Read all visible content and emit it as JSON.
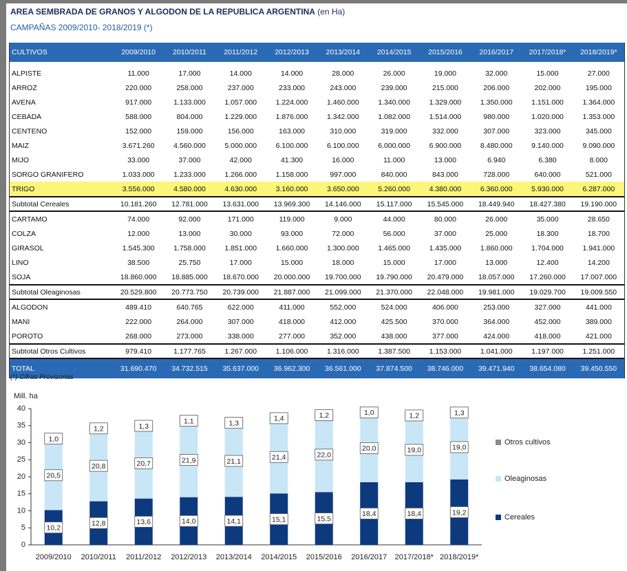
{
  "header": {
    "title": "AREA SEMBRADA DE GRANOS Y ALGODON DE LA REPUBLICA ARGENTINA",
    "title_unit": "(en Ha)",
    "subtitle": "CAMPAÑAS 2009/2010- 2018/2019 (*)"
  },
  "table": {
    "columns": [
      "CULTIVOS",
      "2009/2010",
      "2010/2011",
      "2011/2012",
      "2012/2013",
      "2013/2014",
      "2014/2015",
      "2015/2016",
      "2016/2017",
      "2017/2018*",
      "2018/2019*"
    ],
    "groups": [
      {
        "rows": [
          [
            "ALPISTE",
            "11.000",
            "17.000",
            "14.000",
            "14.000",
            "28.000",
            "26.000",
            "19.000",
            "32.000",
            "15.000",
            "27.000"
          ],
          [
            "ARROZ",
            "220.000",
            "258.000",
            "237.000",
            "233.000",
            "243.000",
            "239.000",
            "215.000",
            "206.000",
            "202.000",
            "195.000"
          ],
          [
            "AVENA",
            "917.000",
            "1.133.000",
            "1.057.000",
            "1.224.000",
            "1.460.000",
            "1.340.000",
            "1.329.000",
            "1.350.000",
            "1.151.000",
            "1.364.000"
          ],
          [
            "CEBADA",
            "588.000",
            "804.000",
            "1.229.000",
            "1.876.000",
            "1.342.000",
            "1.082.000",
            "1.514.000",
            "980.000",
            "1.020.000",
            "1.353.000"
          ],
          [
            "CENTENO",
            "152.000",
            "159.000",
            "156.000",
            "163.000",
            "310.000",
            "319.000",
            "332.000",
            "307.000",
            "323.000",
            "345.000"
          ],
          [
            "MAIZ",
            "3.671.260",
            "4.560.000",
            "5.000.000",
            "6.100.000",
            "6.100.000",
            "6.000.000",
            "6.900.000",
            "8.480.000",
            "9.140.000",
            "9.090.000"
          ],
          [
            "MIJO",
            "33.000",
            "37.000",
            "42.000",
            "41.300",
            "16.000",
            "11.000",
            "13.000",
            "6.940",
            "6.380",
            "8.000"
          ],
          [
            "SORGO GRANIFERO",
            "1.033.000",
            "1.233.000",
            "1.266.000",
            "1.158.000",
            "997.000",
            "840.000",
            "843.000",
            "728.000",
            "640.000",
            "521.000"
          ],
          [
            "TRIGO",
            "3.556.000",
            "4.580.000",
            "4.630.000",
            "3.160.000",
            "3.650.000",
            "5.260.000",
            "4.380.000",
            "6.360.000",
            "5.930.000",
            "6.287.000"
          ]
        ],
        "subtotal": [
          "Subtotal Cereales",
          "10.181.260",
          "12.781.000",
          "13.631.000",
          "13.969.300",
          "14.146.000",
          "15.117.000",
          "15.545.000",
          "18.449.940",
          "18.427.380",
          "19.190.000"
        ]
      },
      {
        "rows": [
          [
            "CARTAMO",
            "74.000",
            "92.000",
            "171.000",
            "119.000",
            "9.000",
            "44.000",
            "80.000",
            "26.000",
            "35.000",
            "28.650"
          ],
          [
            "COLZA",
            "12.000",
            "13.000",
            "30.000",
            "93.000",
            "72.000",
            "56.000",
            "37.000",
            "25.000",
            "18.300",
            "18.700"
          ],
          [
            "GIRASOL",
            "1.545.300",
            "1.758.000",
            "1.851.000",
            "1.660.000",
            "1.300.000",
            "1.465.000",
            "1.435.000",
            "1.860.000",
            "1.704.000",
            "1.941.000"
          ],
          [
            "LINO",
            "38.500",
            "25.750",
            "17.000",
            "15.000",
            "18.000",
            "15.000",
            "17.000",
            "13.000",
            "12.400",
            "14.200"
          ],
          [
            "SOJA",
            "18.860.000",
            "18.885.000",
            "18.670.000",
            "20.000.000",
            "19.700.000",
            "19.790.000",
            "20.479.000",
            "18.057.000",
            "17.260.000",
            "17.007.000"
          ]
        ],
        "subtotal": [
          "Subtotal Oleaginosas",
          "20.529.800",
          "20.773.750",
          "20.739.000",
          "21.887.000",
          "21.099.000",
          "21.370.000",
          "22.048.000",
          "19.981.000",
          "19.029.700",
          "19.009.550"
        ]
      },
      {
        "rows": [
          [
            "ALGODON",
            "489.410",
            "640.765",
            "622.000",
            "411.000",
            "552.000",
            "524.000",
            "406.000",
            "253.000",
            "327.000",
            "441.000"
          ],
          [
            "MANI",
            "222.000",
            "264.000",
            "307.000",
            "418.000",
            "412.000",
            "425.500",
            "370.000",
            "364.000",
            "452.000",
            "389.000"
          ],
          [
            "POROTO",
            "268.000",
            "273.000",
            "338.000",
            "277.000",
            "352.000",
            "438.000",
            "377.000",
            "424.000",
            "418.000",
            "421.000"
          ]
        ],
        "subtotal": [
          "Subtotal Otros Cultivos",
          "979.410",
          "1.177.765",
          "1.267.000",
          "1.106.000",
          "1.316.000",
          "1.387.500",
          "1.153.000",
          "1.041.000",
          "1.197.000",
          "1.251.000"
        ]
      }
    ],
    "total": [
      "TOTAL",
      "31.690.470",
      "34.732.515",
      "35.637.000",
      "36.962.300",
      "36.561.000",
      "37.874.500",
      "38.746.000",
      "39.471.940",
      "38.654.080",
      "39.450.550"
    ],
    "footnote": "(*) Cifras Provisorias"
  },
  "chart_data": {
    "type": "stacked_bar",
    "ylabel": "Mill. ha",
    "categories": [
      "2009/2010",
      "2010/2011",
      "2011/2012",
      "2012/2013",
      "2013/2014",
      "2014/2015",
      "2015/2016",
      "2016/2017",
      "2017/2018*",
      "2018/2019*"
    ],
    "series": [
      {
        "name": "Cereales",
        "color": "#0d3a7e",
        "values": [
          10.2,
          12.8,
          13.6,
          14.0,
          14.1,
          15.1,
          15.5,
          18.4,
          18.4,
          19.2
        ],
        "value_labels": [
          "10,2",
          "12,8",
          "13,6",
          "14,0",
          "14,1",
          "15,1",
          "15,5",
          "18,4",
          "18,4",
          "19,2"
        ]
      },
      {
        "name": "Oleaginosas",
        "color": "#c8e6f6",
        "values": [
          20.5,
          20.8,
          20.7,
          21.9,
          21.1,
          21.4,
          22.0,
          20.0,
          19.0,
          19.0
        ],
        "value_labels": [
          "20,5",
          "20,8",
          "20,7",
          "21,9",
          "21,1",
          "21,4",
          "22,0",
          "20,0",
          "19,0",
          "19,0"
        ]
      },
      {
        "name": "Otros cultivos",
        "color": "#f2f2f2",
        "values": [
          1.0,
          1.2,
          1.3,
          1.1,
          1.3,
          1.4,
          1.2,
          1.0,
          1.2,
          1.3
        ],
        "value_labels": [
          "1,0",
          "1,2",
          "1,3",
          "1,1",
          "1,3",
          "1,4",
          "1,2",
          "1,0",
          "1,2",
          "1,3"
        ]
      }
    ],
    "ylim": [
      0,
      40
    ],
    "yticks": [
      0,
      5,
      10,
      15,
      20,
      25,
      30,
      35,
      40
    ],
    "legend": "right"
  }
}
